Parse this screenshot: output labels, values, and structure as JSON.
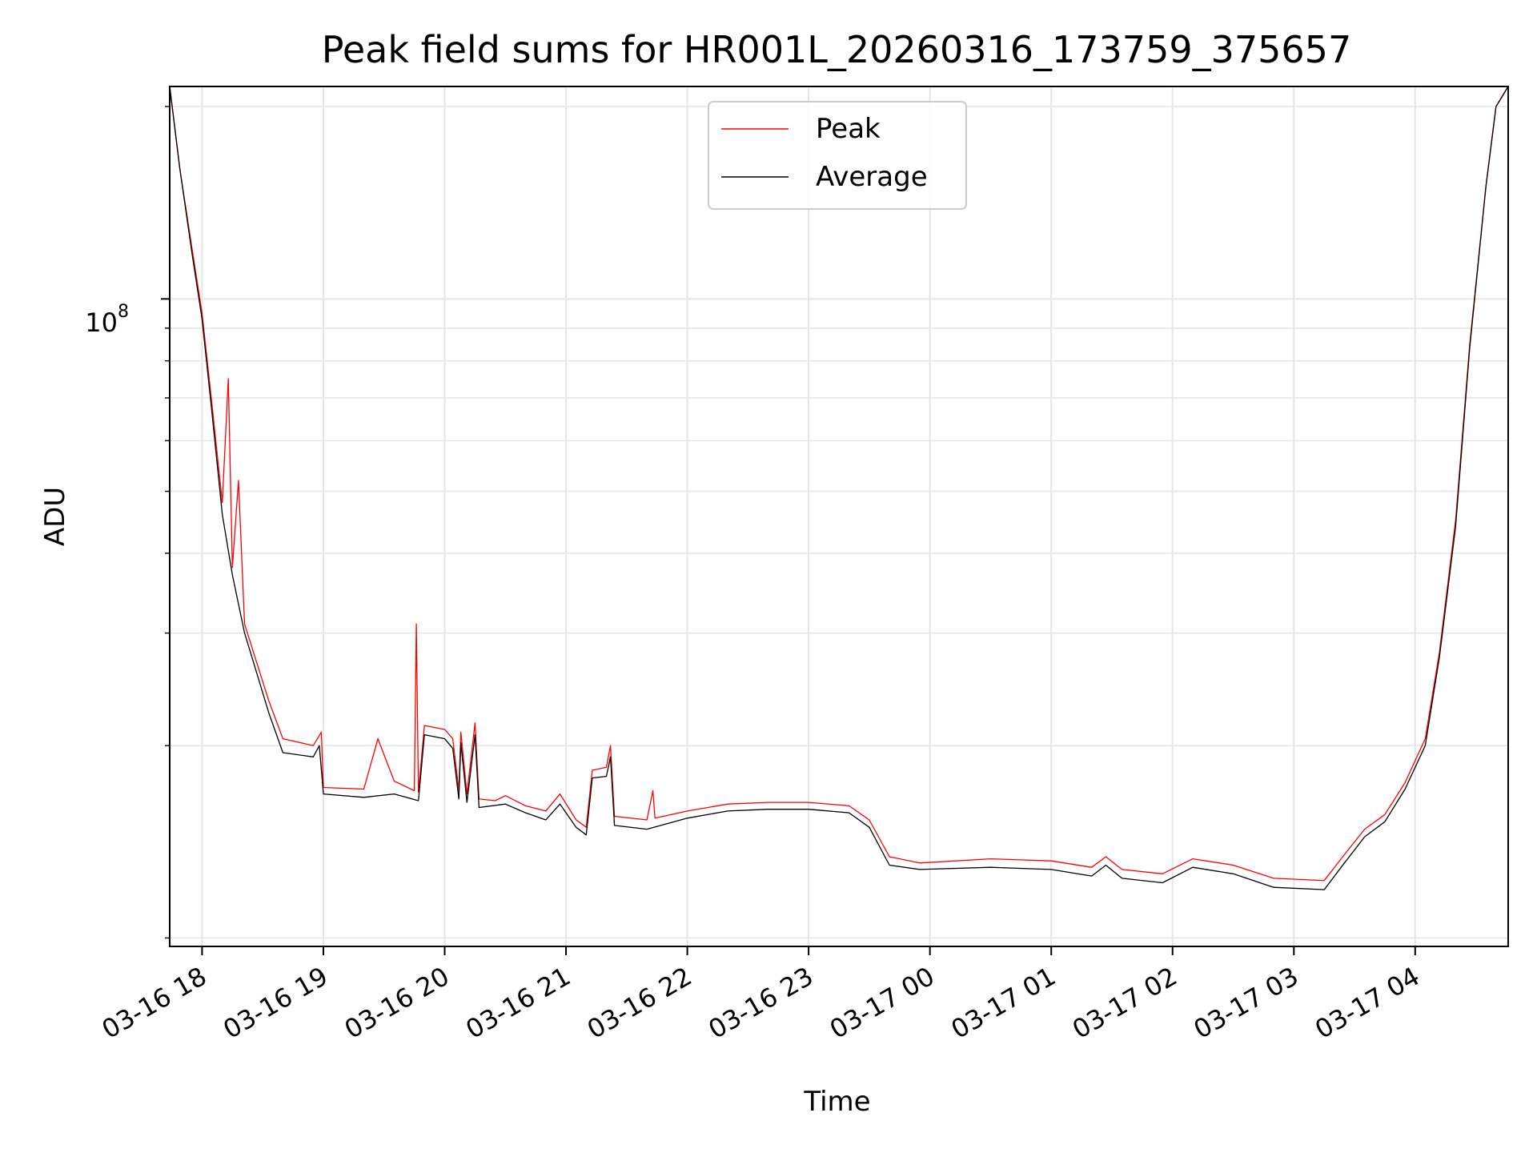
{
  "chart_data": {
    "type": "line",
    "title": "Peak field sums for HR001L_20260316_173759_375657",
    "xlabel": "Time",
    "ylabel": "ADU",
    "yscale": "log",
    "ylim": [
      9700000,
      215000000
    ],
    "xlim": [
      "2026-03-16 17:44",
      "2026-03-17 04:46"
    ],
    "grid": true,
    "legend": "upper center",
    "x_ticks": [
      "03-16 18",
      "03-16 19",
      "03-16 20",
      "03-16 21",
      "03-16 22",
      "03-16 23",
      "03-17 00",
      "03-17 01",
      "03-17 02",
      "03-17 03",
      "03-17 04"
    ],
    "y_tick_major": {
      "value": 100000000,
      "label": "10",
      "exponent": "8"
    },
    "y_tick_minor": [
      10000000,
      20000000,
      30000000,
      40000000,
      50000000,
      60000000,
      70000000,
      80000000,
      90000000,
      200000000
    ],
    "series": [
      {
        "name": "Peak",
        "color": "#ff0000",
        "points": [
          [
            "2026-03-16 17:44",
            215000000
          ],
          [
            "2026-03-16 17:49",
            160000000
          ],
          [
            "2026-03-16 17:55",
            120000000
          ],
          [
            "2026-03-16 18:00",
            95000000
          ],
          [
            "2026-03-16 18:05",
            68000000
          ],
          [
            "2026-03-16 18:10",
            48000000
          ],
          [
            "2026-03-16 18:13",
            75000000
          ],
          [
            "2026-03-16 18:15",
            38000000
          ],
          [
            "2026-03-16 18:18",
            52000000
          ],
          [
            "2026-03-16 18:21",
            31000000
          ],
          [
            "2026-03-16 18:27",
            27000000
          ],
          [
            "2026-03-16 18:33",
            23500000
          ],
          [
            "2026-03-16 18:40",
            20500000
          ],
          [
            "2026-03-16 18:55",
            20000000
          ],
          [
            "2026-03-16 18:59",
            21000000
          ],
          [
            "2026-03-16 19:00",
            17200000
          ],
          [
            "2026-03-16 19:20",
            17100000
          ],
          [
            "2026-03-16 19:27",
            20500000
          ],
          [
            "2026-03-16 19:35",
            17600000
          ],
          [
            "2026-03-16 19:45",
            17000000
          ],
          [
            "2026-03-16 19:46",
            31000000
          ],
          [
            "2026-03-16 19:47",
            16900000
          ],
          [
            "2026-03-16 19:50",
            21500000
          ],
          [
            "2026-03-16 20:00",
            21200000
          ],
          [
            "2026-03-16 20:04",
            20500000
          ],
          [
            "2026-03-16 20:07",
            17000000
          ],
          [
            "2026-03-16 20:08",
            21000000
          ],
          [
            "2026-03-16 20:11",
            16800000
          ],
          [
            "2026-03-16 20:15",
            21700000
          ],
          [
            "2026-03-16 20:17",
            16500000
          ],
          [
            "2026-03-16 20:25",
            16400000
          ],
          [
            "2026-03-16 20:30",
            16700000
          ],
          [
            "2026-03-16 20:40",
            16100000
          ],
          [
            "2026-03-16 20:50",
            15800000
          ],
          [
            "2026-03-16 20:57",
            16800000
          ],
          [
            "2026-03-16 21:05",
            15300000
          ],
          [
            "2026-03-16 21:10",
            14900000
          ],
          [
            "2026-03-16 21:13",
            18300000
          ],
          [
            "2026-03-16 21:20",
            18500000
          ],
          [
            "2026-03-16 21:22",
            20000000
          ],
          [
            "2026-03-16 21:24",
            15500000
          ],
          [
            "2026-03-16 21:40",
            15300000
          ],
          [
            "2026-03-16 21:43",
            17000000
          ],
          [
            "2026-03-16 21:44",
            15400000
          ],
          [
            "2026-03-16 22:00",
            15800000
          ],
          [
            "2026-03-16 22:20",
            16200000
          ],
          [
            "2026-03-16 22:40",
            16300000
          ],
          [
            "2026-03-16 23:00",
            16300000
          ],
          [
            "2026-03-16 23:20",
            16100000
          ],
          [
            "2026-03-16 23:30",
            15300000
          ],
          [
            "2026-03-16 23:40",
            13400000
          ],
          [
            "2026-03-16 23:55",
            13100000
          ],
          [
            "2026-03-17 00:30",
            13300000
          ],
          [
            "2026-03-17 01:00",
            13200000
          ],
          [
            "2026-03-17 01:20",
            12900000
          ],
          [
            "2026-03-17 01:27",
            13400000
          ],
          [
            "2026-03-17 01:35",
            12800000
          ],
          [
            "2026-03-17 01:55",
            12600000
          ],
          [
            "2026-03-17 02:10",
            13300000
          ],
          [
            "2026-03-17 02:30",
            13000000
          ],
          [
            "2026-03-17 02:50",
            12400000
          ],
          [
            "2026-03-17 03:15",
            12300000
          ],
          [
            "2026-03-17 03:25",
            13500000
          ],
          [
            "2026-03-17 03:35",
            14800000
          ],
          [
            "2026-03-17 03:45",
            15600000
          ],
          [
            "2026-03-17 03:55",
            17500000
          ],
          [
            "2026-03-17 04:05",
            20500000
          ],
          [
            "2026-03-17 04:12",
            28000000
          ],
          [
            "2026-03-17 04:20",
            45000000
          ],
          [
            "2026-03-17 04:27",
            85000000
          ],
          [
            "2026-03-17 04:35",
            150000000
          ],
          [
            "2026-03-17 04:40",
            200000000
          ],
          [
            "2026-03-17 04:46",
            215000000
          ]
        ]
      },
      {
        "name": "Average",
        "color": "#000000",
        "points": [
          [
            "2026-03-16 17:44",
            215000000
          ],
          [
            "2026-03-16 17:49",
            160000000
          ],
          [
            "2026-03-16 17:55",
            118000000
          ],
          [
            "2026-03-16 18:00",
            93000000
          ],
          [
            "2026-03-16 18:05",
            66000000
          ],
          [
            "2026-03-16 18:10",
            46000000
          ],
          [
            "2026-03-16 18:15",
            37000000
          ],
          [
            "2026-03-16 18:21",
            30000000
          ],
          [
            "2026-03-16 18:27",
            26000000
          ],
          [
            "2026-03-16 18:33",
            22500000
          ],
          [
            "2026-03-16 18:40",
            19500000
          ],
          [
            "2026-03-16 18:55",
            19200000
          ],
          [
            "2026-03-16 18:58",
            20000000
          ],
          [
            "2026-03-16 19:00",
            16800000
          ],
          [
            "2026-03-16 19:20",
            16600000
          ],
          [
            "2026-03-16 19:35",
            16800000
          ],
          [
            "2026-03-16 19:47",
            16400000
          ],
          [
            "2026-03-16 19:50",
            20800000
          ],
          [
            "2026-03-16 20:00",
            20500000
          ],
          [
            "2026-03-16 20:04",
            19800000
          ],
          [
            "2026-03-16 20:07",
            16500000
          ],
          [
            "2026-03-16 20:08",
            20200000
          ],
          [
            "2026-03-16 20:11",
            16300000
          ],
          [
            "2026-03-16 20:15",
            20800000
          ],
          [
            "2026-03-16 20:17",
            16000000
          ],
          [
            "2026-03-16 20:30",
            16200000
          ],
          [
            "2026-03-16 20:40",
            15700000
          ],
          [
            "2026-03-16 20:50",
            15300000
          ],
          [
            "2026-03-16 20:57",
            16200000
          ],
          [
            "2026-03-16 21:05",
            14900000
          ],
          [
            "2026-03-16 21:10",
            14500000
          ],
          [
            "2026-03-16 21:13",
            17800000
          ],
          [
            "2026-03-16 21:20",
            17900000
          ],
          [
            "2026-03-16 21:22",
            19200000
          ],
          [
            "2026-03-16 21:24",
            15000000
          ],
          [
            "2026-03-16 21:40",
            14800000
          ],
          [
            "2026-03-16 22:00",
            15400000
          ],
          [
            "2026-03-16 22:20",
            15800000
          ],
          [
            "2026-03-16 22:40",
            15900000
          ],
          [
            "2026-03-16 23:00",
            15900000
          ],
          [
            "2026-03-16 23:20",
            15700000
          ],
          [
            "2026-03-16 23:30",
            14900000
          ],
          [
            "2026-03-16 23:40",
            13000000
          ],
          [
            "2026-03-16 23:55",
            12800000
          ],
          [
            "2026-03-17 00:30",
            12900000
          ],
          [
            "2026-03-17 01:00",
            12800000
          ],
          [
            "2026-03-17 01:20",
            12500000
          ],
          [
            "2026-03-17 01:27",
            13000000
          ],
          [
            "2026-03-17 01:35",
            12400000
          ],
          [
            "2026-03-17 01:55",
            12200000
          ],
          [
            "2026-03-17 02:10",
            12900000
          ],
          [
            "2026-03-17 02:30",
            12600000
          ],
          [
            "2026-03-17 02:50",
            12000000
          ],
          [
            "2026-03-17 03:15",
            11900000
          ],
          [
            "2026-03-17 03:25",
            13100000
          ],
          [
            "2026-03-17 03:35",
            14400000
          ],
          [
            "2026-03-17 03:45",
            15200000
          ],
          [
            "2026-03-17 03:55",
            17100000
          ],
          [
            "2026-03-17 04:05",
            20000000
          ],
          [
            "2026-03-17 04:12",
            27500000
          ],
          [
            "2026-03-17 04:20",
            44000000
          ],
          [
            "2026-03-17 04:27",
            84000000
          ],
          [
            "2026-03-17 04:35",
            150000000
          ],
          [
            "2026-03-17 04:40",
            200000000
          ],
          [
            "2026-03-17 04:46",
            215000000
          ]
        ]
      }
    ]
  }
}
